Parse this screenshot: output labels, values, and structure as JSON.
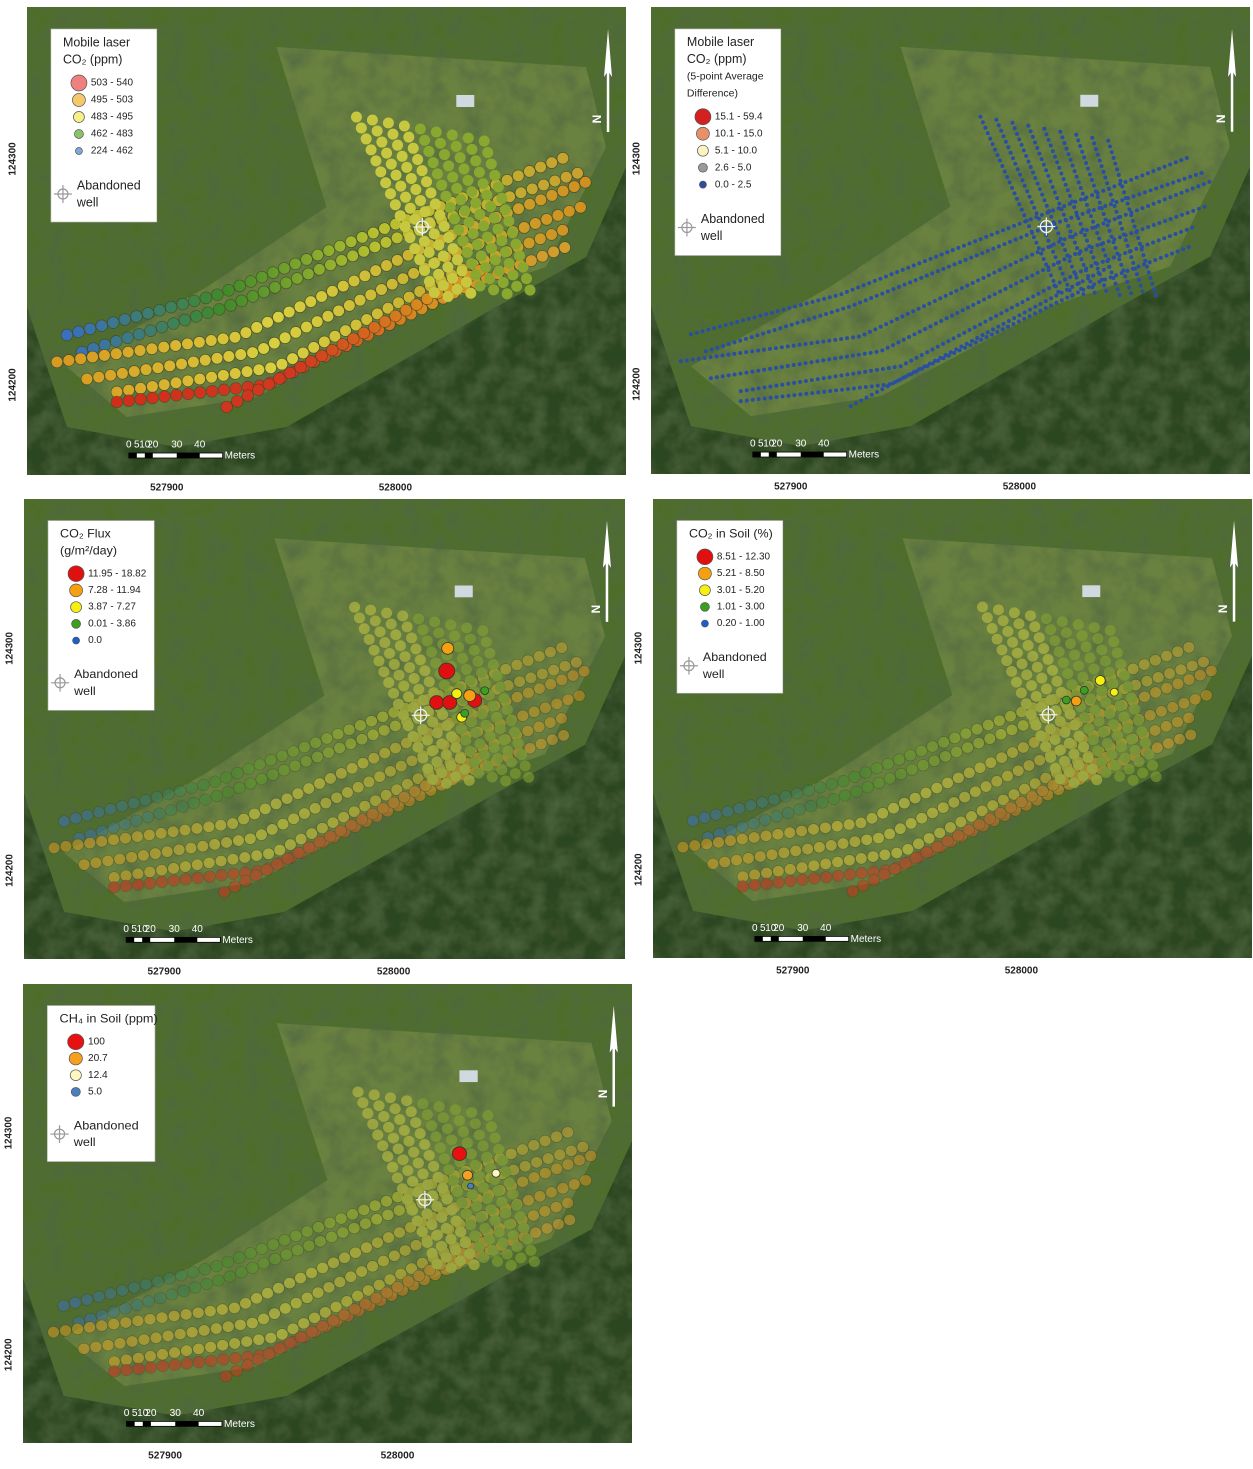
{
  "panels": [
    {
      "legend": {
        "title": [
          "Mobile laser",
          "CO₂ (ppm)"
        ],
        "items": [
          {
            "label": "503 - 540",
            "color": "#ef8080"
          },
          {
            "label": "495 - 503",
            "color": "#f5c96a"
          },
          {
            "label": "483 - 495",
            "color": "#f5f08a"
          },
          {
            "label": "462 - 483",
            "color": "#8cc26a"
          },
          {
            "label": "224 - 462",
            "color": "#7fa7dc"
          }
        ],
        "well": [
          "Abandoned",
          "well"
        ]
      },
      "scale": [
        "0",
        "5",
        "10",
        "20",
        "30",
        "40",
        "Meters"
      ],
      "north": "N",
      "x_coords": [
        "527900",
        "528000"
      ],
      "y_coords": [
        "124300",
        "124200"
      ]
    },
    {
      "legend": {
        "title": [
          "Mobile laser",
          "CO₂ (ppm)",
          "(5-point Average",
          "Difference)"
        ],
        "items": [
          {
            "label": "15.1 - 59.4",
            "color": "#d42020"
          },
          {
            "label": "10.1 - 15.0",
            "color": "#e8906a"
          },
          {
            "label": "5.1 - 10.0",
            "color": "#fbf3c0"
          },
          {
            "label": "2.6 - 5.0",
            "color": "#9a9a9a"
          },
          {
            "label": "0.0 - 2.5",
            "color": "#2a4fa0"
          }
        ],
        "well": [
          "Abandoned",
          "well"
        ]
      },
      "scale": [
        "0",
        "5",
        "10",
        "20",
        "30",
        "40",
        "Meters"
      ],
      "north": "N",
      "x_coords": [
        "527900",
        "528000"
      ],
      "y_coords": [
        "124300",
        "124200"
      ]
    },
    {
      "legend": {
        "title": [
          "CO₂ Flux",
          "(g/m²/day)"
        ],
        "items": [
          {
            "label": "11.95 - 18.82",
            "color": "#e01010"
          },
          {
            "label": "7.28 - 11.94",
            "color": "#f5a010"
          },
          {
            "label": "3.87 - 7.27",
            "color": "#f5f010"
          },
          {
            "label": "0.01 - 3.86",
            "color": "#3aa020"
          },
          {
            "label": "0.0",
            "color": "#1a5fd0"
          }
        ],
        "well": [
          "Abandoned",
          "well"
        ]
      },
      "scale": [
        "0",
        "5",
        "10",
        "20",
        "30",
        "40",
        "Meters"
      ],
      "north": "N",
      "x_coords": [
        "527900",
        "528000"
      ],
      "y_coords": [
        "124300",
        "124200"
      ]
    },
    {
      "legend": {
        "title": [
          "CO₂ in Soil (%)"
        ],
        "items": [
          {
            "label": "8.51 - 12.30",
            "color": "#e01010"
          },
          {
            "label": "5.21 - 8.50",
            "color": "#f5a010"
          },
          {
            "label": "3.01 - 5.20",
            "color": "#f5f010"
          },
          {
            "label": "1.01 - 3.00",
            "color": "#3aa020"
          },
          {
            "label": "0.20 - 1.00",
            "color": "#1a5fd0"
          }
        ],
        "well": [
          "Abandoned",
          "well"
        ]
      },
      "scale": [
        "0",
        "5",
        "10",
        "20",
        "30",
        "40",
        "Meters"
      ],
      "north": "N",
      "x_coords": [
        "527900",
        "528000"
      ],
      "y_coords": [
        "124300",
        "124200"
      ]
    },
    {
      "legend": {
        "title": [
          "CH₄ in Soil (ppm)"
        ],
        "items": [
          {
            "label": "100",
            "color": "#e81010"
          },
          {
            "label": "20.7",
            "color": "#f5a020"
          },
          {
            "label": "12.4",
            "color": "#fdf6c0"
          },
          {
            "label": "5.0",
            "color": "#4a7fc0"
          }
        ],
        "well": [
          "Abandoned",
          "well"
        ]
      },
      "scale": [
        "0",
        "5",
        "10",
        "20",
        "30",
        "40",
        "Meters"
      ],
      "north": "N",
      "x_coords": [
        "527900",
        "528000"
      ],
      "y_coords": [
        "124300",
        "124200"
      ]
    }
  ]
}
